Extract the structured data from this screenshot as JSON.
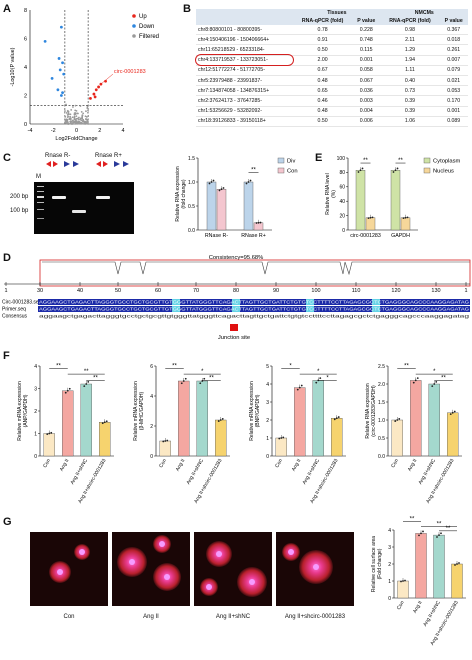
{
  "panels": {
    "A": "A",
    "B": "B",
    "C": "C",
    "D": "D",
    "E": "E",
    "F": "F",
    "G": "G"
  },
  "panelA": {
    "ylabel": "-Log10(P value)",
    "xlabel": "Log2FoldChange",
    "legend": [
      {
        "label": "Up",
        "color": "#e8261c"
      },
      {
        "label": "Down",
        "color": "#2e86de"
      },
      {
        "label": "Filtered",
        "color": "#9a9a9a"
      }
    ],
    "annotation": "circ-0001283",
    "chart_data": {
      "type": "scatter",
      "xlim": [
        -4,
        4
      ],
      "ylim": [
        0,
        8
      ],
      "xticks": [
        "-4",
        "-2",
        "0",
        "2",
        "4"
      ],
      "yticks": [
        "0",
        "2",
        "4",
        "6",
        "8"
      ],
      "points_up": [
        [
          1.5,
          2.1
        ],
        [
          1.7,
          2.4
        ],
        [
          1.9,
          2.6
        ],
        [
          2.1,
          2.8
        ],
        [
          1.2,
          1.8
        ],
        [
          1.6,
          1.9
        ],
        [
          2.5,
          3.0
        ]
      ],
      "points_down": [
        [
          -1.3,
          6.8
        ],
        [
          -2.7,
          5.8
        ],
        [
          -1.5,
          4.6
        ],
        [
          -1.2,
          4.3
        ],
        [
          -1.4,
          3.8
        ],
        [
          -1.1,
          3.5
        ],
        [
          -2.1,
          3.2
        ],
        [
          -1.6,
          2.4
        ],
        [
          -1.2,
          2.2
        ],
        [
          -1.3,
          2.0
        ]
      ],
      "threshold_x": [
        -1,
        1
      ],
      "threshold_y": 1.3
    }
  },
  "panelB": {
    "group_tissues": "Tissues",
    "group_nmcms": "NMCMs",
    "headers": [
      "",
      "RNA-qPCR (fold)",
      "P value",
      "RNA-qPCR (fold)",
      "P value"
    ],
    "rows": [
      [
        "chr8:80800101 - 80800395-",
        "0.78",
        "0.228",
        "0.98",
        "0.367"
      ],
      [
        "chr4:150406196 - 150406664+",
        "0.91",
        "0.748",
        "2.11",
        "0.018"
      ],
      [
        "chr11:65218529 - 65233184-",
        "0.50",
        "0.115",
        "1.29",
        "0.261"
      ],
      [
        "chr4:133719537 - 133723051-",
        "2.00",
        "0.001",
        "1.94",
        "0.007"
      ],
      [
        "chr12:51772274 - 51772705-",
        "0.67",
        "0.058",
        "1.11",
        "0.079"
      ],
      [
        "chr5:23979488 - 23991837-",
        "0.48",
        "0.067",
        "0.40",
        "0.021"
      ],
      [
        "chr7:134874058 - 134876315+",
        "0.65",
        "0.036",
        "0.73",
        "0.053"
      ],
      [
        "chr2:37624173 - 37647285-",
        "0.46",
        "0.003",
        "0.39",
        "0.170"
      ],
      [
        "chr1:53256629 - 53282092-",
        "0.48",
        "0.004",
        "0.39",
        "0.001"
      ],
      [
        "chr18:39126833 - 39150118+",
        "0.50",
        "0.006",
        "1.06",
        "0.089"
      ]
    ],
    "highlight_row": 3
  },
  "panelC": {
    "gel_labels": [
      "M",
      "Rnase R-",
      "Rnase R+"
    ],
    "bp_labels": [
      "200 bp",
      "100 bp"
    ],
    "ylabel": "Relative RNA expression (fold change)",
    "legend": [
      {
        "label": "Div",
        "color": "#bcd4ea"
      },
      {
        "label": "Con",
        "color": "#f4c6cf"
      }
    ],
    "sig": "**",
    "chart_data": {
      "type": "bar",
      "categories": [
        "RNase R-",
        "RNase R+"
      ],
      "series": [
        {
          "name": "Div",
          "values": [
            1.0,
            1.0
          ]
        },
        {
          "name": "Con",
          "values": [
            0.85,
            0.15
          ]
        }
      ],
      "ylim": [
        0,
        1.5
      ],
      "yticks": [
        "0.0",
        "0.5",
        "1.0",
        "1.5"
      ]
    }
  },
  "panelE": {
    "ylabel": "Relative RNA level (%)",
    "legend": [
      {
        "label": "Cytoplasm",
        "color": "#cfe3a6"
      },
      {
        "label": "Nucleus",
        "color": "#f6d79a"
      }
    ],
    "sig": [
      "**",
      "**"
    ],
    "chart_data": {
      "type": "bar",
      "categories": [
        "circ-0001283",
        "GAPDH"
      ],
      "series": [
        {
          "name": "Cytoplasm",
          "values": [
            83,
            83
          ]
        },
        {
          "name": "Nucleus",
          "values": [
            17,
            17
          ]
        }
      ],
      "ylim": [
        0,
        100
      ],
      "yticks": [
        "0",
        "20",
        "40",
        "60",
        "80",
        "100"
      ]
    }
  },
  "panelD": {
    "title": "Consistency=95.68%",
    "ruler": [
      "1",
      "30",
      "40",
      "50",
      "60",
      "70",
      "80",
      "90",
      "100",
      "110",
      "120",
      "130",
      "1"
    ],
    "seq_labels": [
      "Circ-0001283.seq",
      "Primer.seq",
      "Consensus"
    ],
    "seq1": "AGGAAGCTGAGACTTAGGGTGCCTGCTGCGTTGTGGGTTATGGGTTCAGACTTAGTTGCTGATTCTGTGTCCTTTTCCTTAGAGCGCTCTGAGGGCAGCCCAAGGAGATAG",
    "seq2": "AGGAAGCTGAGACTTAGGGTGCCTGCTGCGTTGTGGGTTATGGGTTCAGACTTAGTTGCTGATTCTGTGTCCTTTTCCTTAGAGCGCTCTGAGGGCAGCCCAAGGAGATAG",
    "consensus": "aggaagctgagacttagggtgcctgctgcgttgtgggttatgggttcagacttagttgctgattctgtgtccttttccttagagcgctctgagggcagcccaaggagatag",
    "junction": "Junction site"
  },
  "panelF": {
    "ylabels": [
      "Relative mRNA expression (ANP/GAPDH)",
      "Relative mRNA expression (β-MHC/GAPDH)",
      "Relative mRNA expression (BNP/GAPDH)",
      "Relative RNA expression (circ-0001283/GAPDH)"
    ],
    "categories": [
      "Con",
      "Ang II",
      "Ang II+shNC",
      "Ang II+shcirc-0001283"
    ],
    "colors": [
      "#fbe8c4",
      "#f4a7a1",
      "#a4d8cd",
      "#f6d36e"
    ],
    "charts": [
      {
        "values": [
          1.0,
          2.9,
          3.2,
          1.5
        ],
        "ylim": [
          0,
          4
        ],
        "yticks": [
          "0",
          "1",
          "2",
          "3",
          "4"
        ],
        "sig": [
          "**",
          "**",
          "**"
        ]
      },
      {
        "values": [
          1.0,
          5.0,
          5.0,
          2.4
        ],
        "ylim": [
          0,
          6
        ],
        "yticks": [
          "0",
          "2",
          "4",
          "6"
        ],
        "sig": [
          "**",
          "*",
          "**"
        ]
      },
      {
        "values": [
          1.0,
          3.8,
          4.2,
          2.1
        ],
        "ylim": [
          0,
          5
        ],
        "yticks": [
          "0",
          "1",
          "2",
          "3",
          "4",
          "5"
        ],
        "sig": [
          "*",
          "*",
          "*"
        ]
      },
      {
        "values": [
          1.0,
          2.1,
          2.0,
          1.2
        ],
        "ylim": [
          0,
          2.5
        ],
        "yticks": [
          "0.0",
          "0.5",
          "1.0",
          "1.5",
          "2.0",
          "2.5"
        ],
        "sig": [
          "**",
          "*",
          "**"
        ]
      }
    ]
  },
  "panelG": {
    "captions": [
      "Con",
      "Ang II",
      "Ang II+shNC",
      "Ang II+shcirc-0001283"
    ],
    "ylabel": "Relative cell surface area (Fold change)",
    "sig": [
      "**",
      "**",
      "**"
    ],
    "chart_data": {
      "type": "bar",
      "categories": [
        "Con",
        "Ang II",
        "Ang II+shNC",
        "Ang II+shcirc-0001283"
      ],
      "values": [
        1.0,
        3.8,
        3.7,
        2.0
      ],
      "ylim": [
        0,
        4
      ],
      "yticks": [
        "0",
        "1",
        "2",
        "3",
        "4"
      ]
    }
  }
}
